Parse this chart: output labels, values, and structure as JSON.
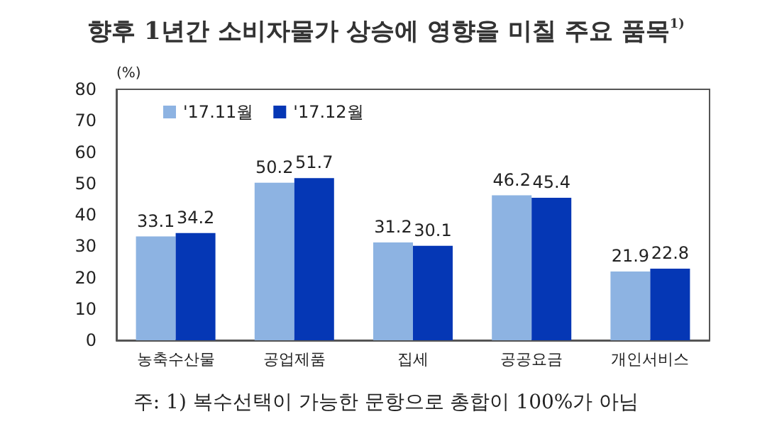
{
  "chart_data": {
    "type": "bar",
    "title": "향후 1년간 소비자물가 상승에 영향을 미칠 주요 품목$^{1)}$",
    "ylabel": "(%)",
    "annotations": [
      "주: 1) 복수선택이 가능한 문항으로 총합이 100%가 아님"
    ],
    "categories": [
      "농축수산물",
      "공업제품",
      "집세",
      "공공요금",
      "개인서비스"
    ],
    "series": [
      {
        "name": "'17.11월",
        "color": "#8db3e2",
        "values": [
          33.1,
          50.2,
          31.2,
          46.2,
          21.9
        ]
      },
      {
        "name": "'17.12월",
        "color": "#0537b5",
        "values": [
          34.2,
          51.7,
          30.1,
          45.4,
          22.8
        ]
      }
    ],
    "ylim": [
      0,
      80
    ],
    "yticks": [
      0,
      10,
      20,
      30,
      40,
      50,
      60,
      70,
      80
    ],
    "data_labels": true,
    "grid": false,
    "legend": "top left"
  }
}
